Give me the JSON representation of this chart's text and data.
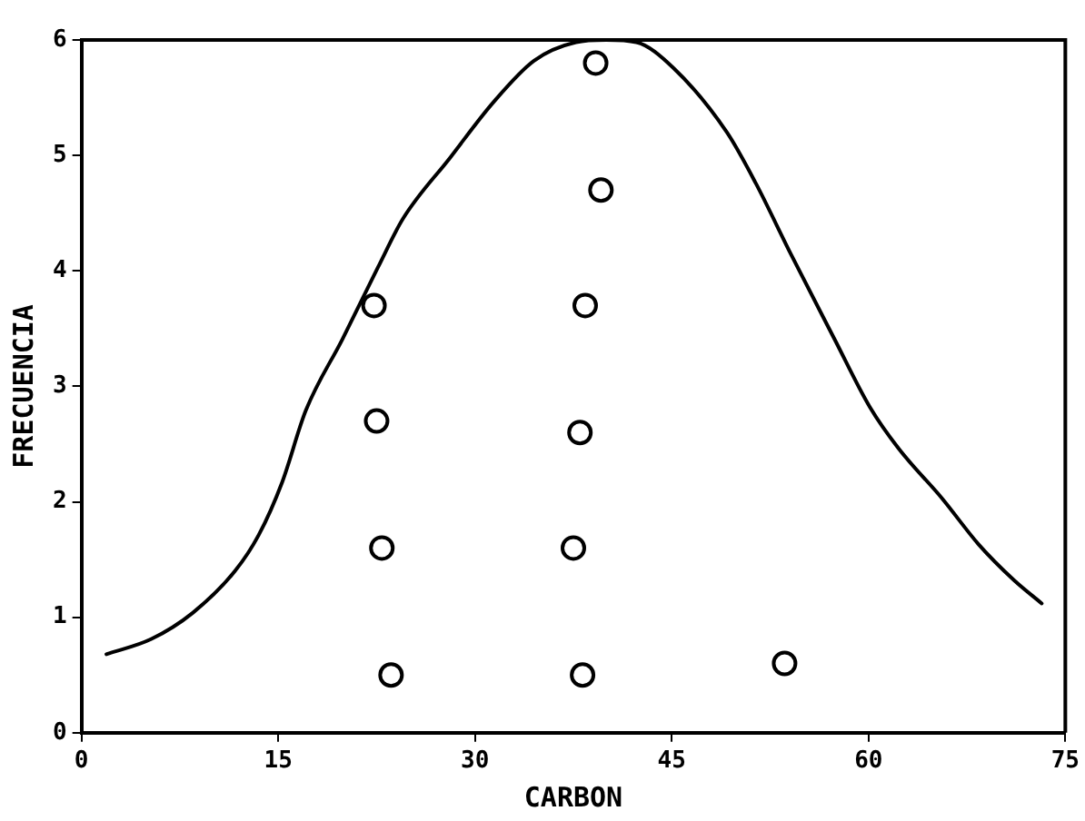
{
  "chart_data": {
    "type": "scatter",
    "xlabel": "CARBON",
    "ylabel": "FRECUENCIA",
    "xlim": [
      0,
      75
    ],
    "xticks": [
      0,
      15,
      30,
      45,
      60,
      75
    ],
    "ylim": [
      0,
      6
    ],
    "yticks": [
      0,
      1,
      2,
      3,
      4,
      5,
      6
    ],
    "series": [
      {
        "color": "#000000",
        "marker": "circle",
        "x": [
          22.3,
          22.5,
          22.9,
          23.6,
          39.2,
          39.6,
          38.4,
          38.0,
          37.5,
          38.2,
          53.6
        ],
        "values": [
          3.7,
          2.7,
          1.6,
          0.5,
          5.8,
          4.7,
          3.7,
          2.6,
          1.6,
          0.5,
          0.6
        ]
      },
      {
        "type": "line",
        "color": "#000000",
        "marker": "none",
        "line_style": "solid",
        "x": [
          1.9,
          5.3,
          8.5,
          11.7,
          13.5,
          15.3,
          17.1,
          19.9,
          22.6,
          24.5,
          28.1,
          31.4,
          34.5,
          37.7,
          40.0,
          42.3,
          45.1,
          49.2,
          51.4,
          54.1,
          57.4,
          60.1,
          62.3,
          65.6,
          68.4,
          71.1,
          73.2
        ],
        "values": [
          0.68,
          0.81,
          1.04,
          1.4,
          1.71,
          2.17,
          2.79,
          3.41,
          4.03,
          4.45,
          4.98,
          5.46,
          5.82,
          5.98,
          6.0,
          5.98,
          5.76,
          5.2,
          4.76,
          4.14,
          3.41,
          2.82,
          2.46,
          2.03,
          1.63,
          1.32,
          1.12
        ]
      }
    ]
  }
}
